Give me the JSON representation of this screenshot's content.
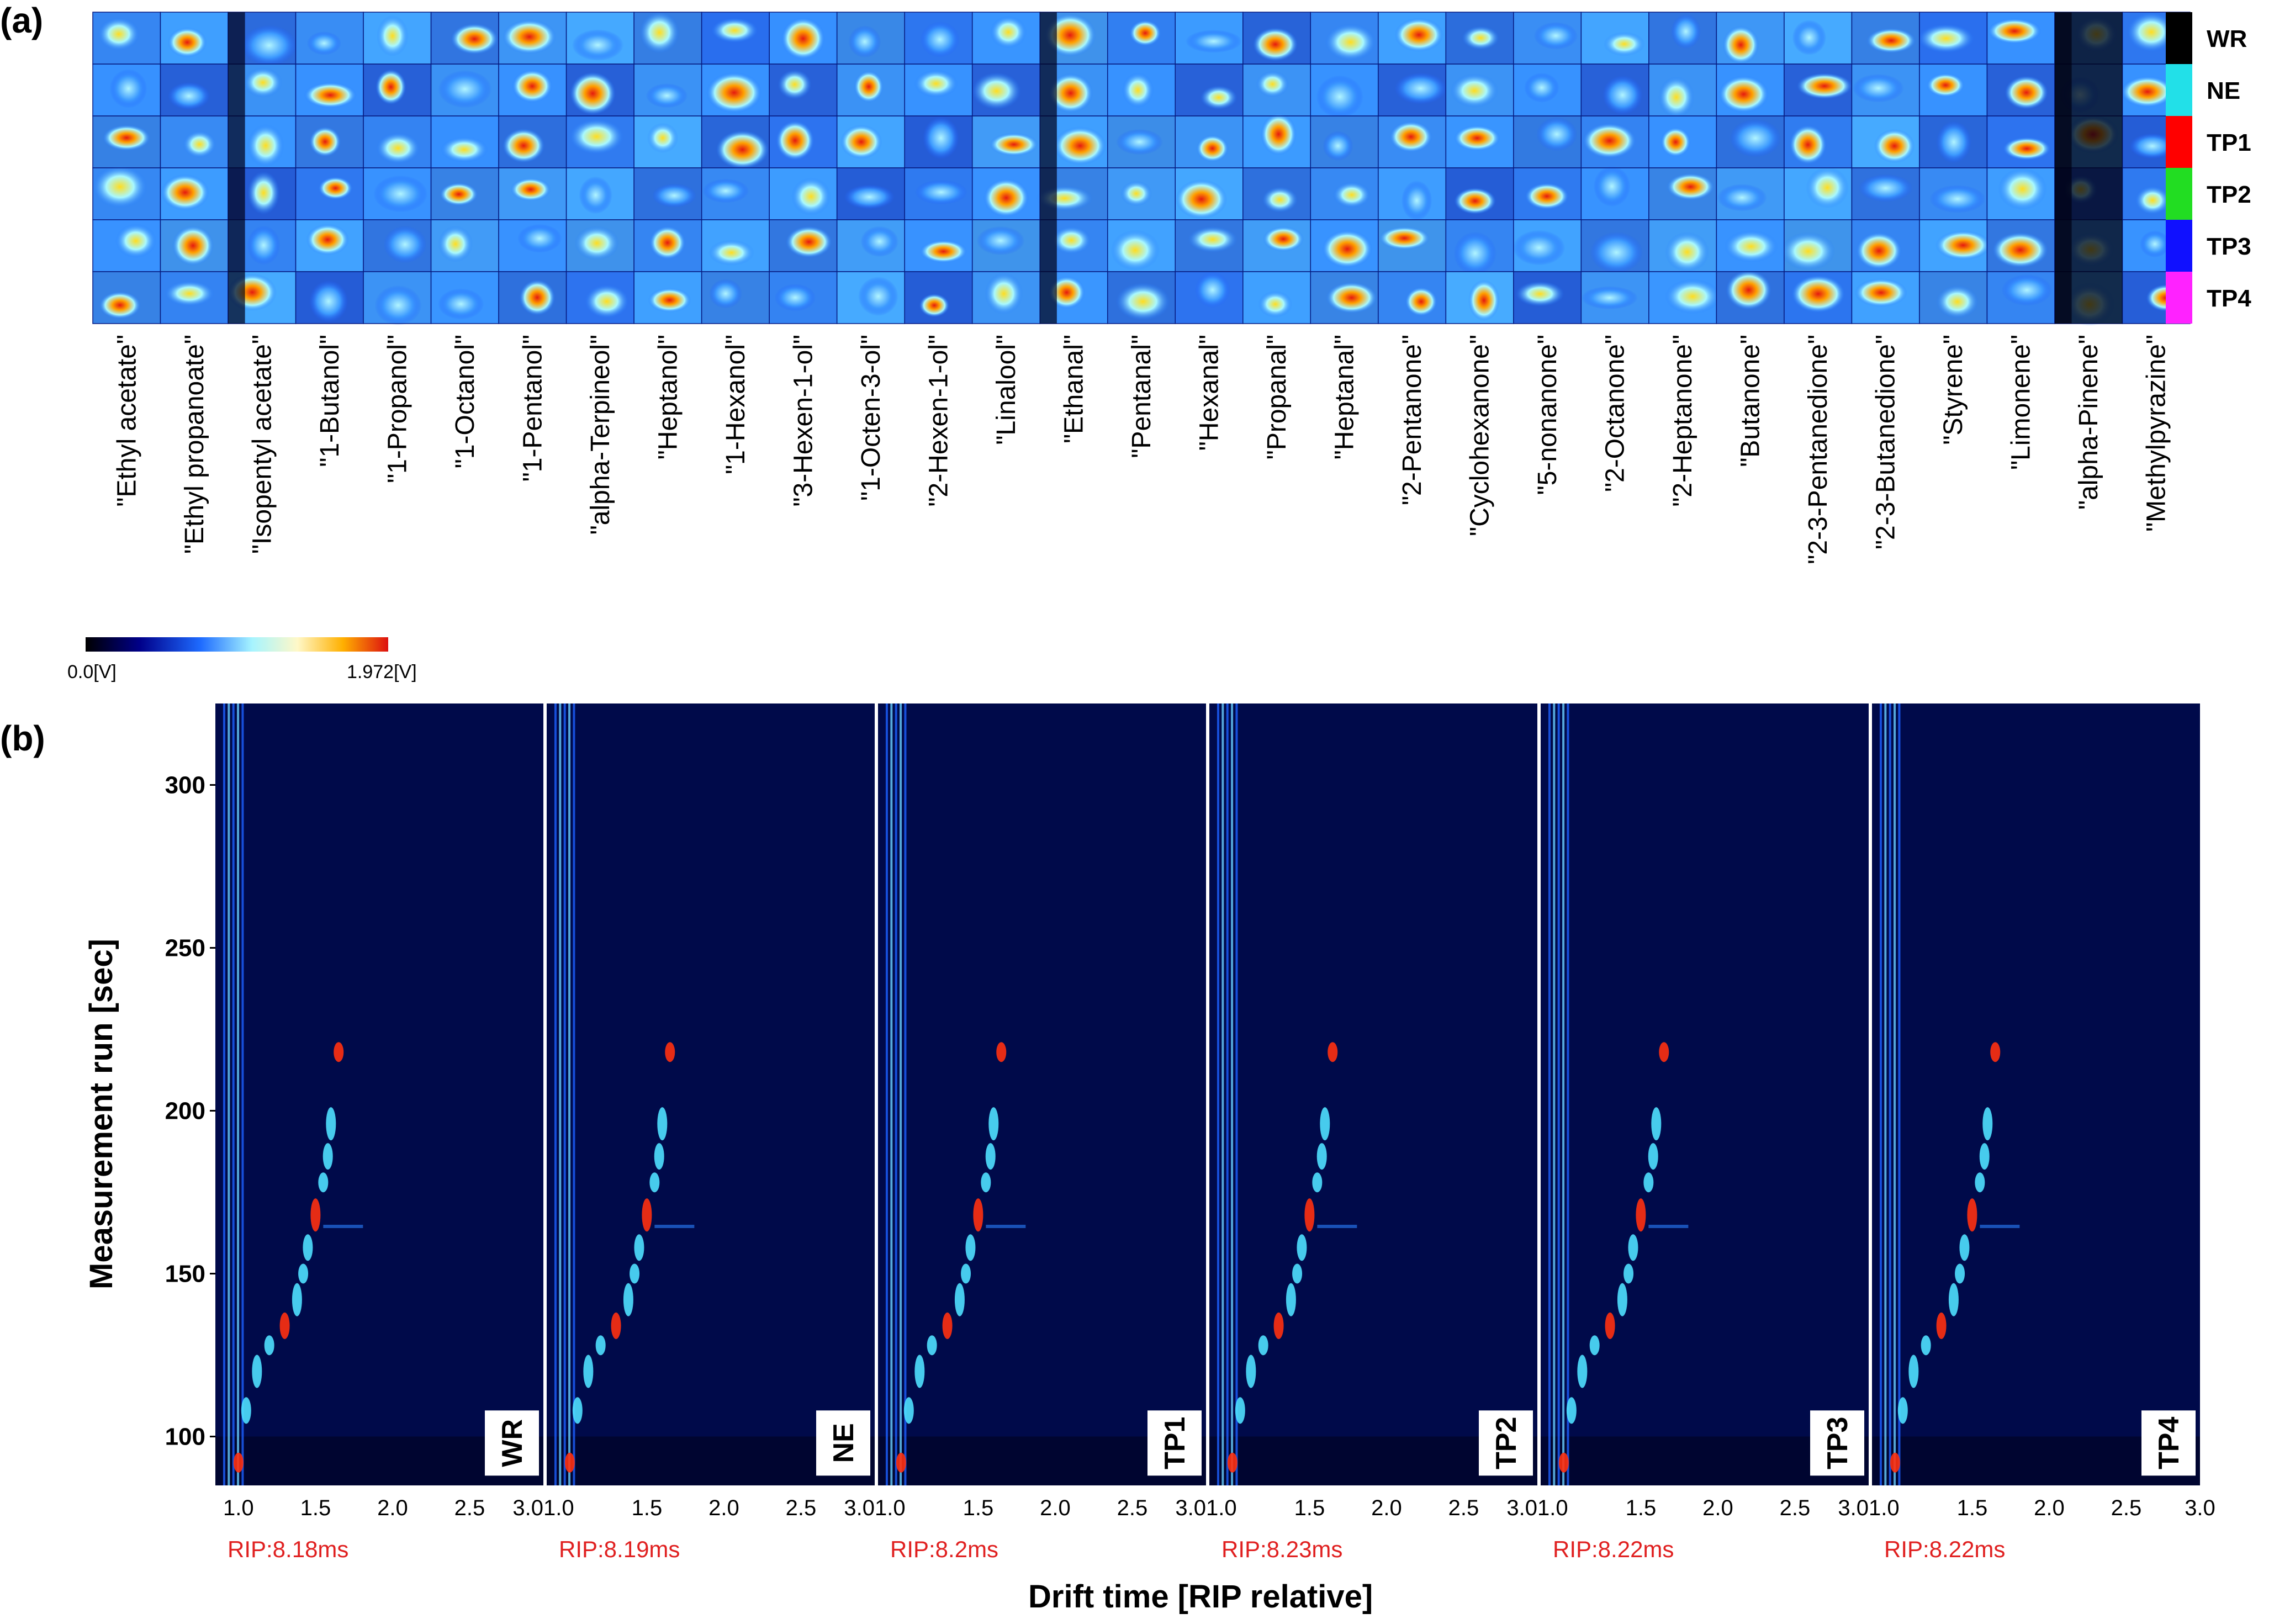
{
  "panel_a": {
    "label": "(a)",
    "compounds": [
      "\"Ethyl acetate\"",
      "\"Ethyl propanoate\"",
      "\"Isopentyl acetate\"",
      "\"1-Butanol\"",
      "\"1-Propanol\"",
      "\"1-Octanol\"",
      "\"1-Pentanol\"",
      "\"alpha-Terpineol\"",
      "\"Heptanol\"",
      "\"1-Hexanol\"",
      "\"3-Hexen-1-ol\"",
      "\"1-Octen-3-ol\"",
      "\"2-Hexen-1-ol\"",
      "\"Linalool\"",
      "\"Ethanal\"",
      "\"Pentanal\"",
      "\"Hexanal\"",
      "\"Propanal\"",
      "\"Heptanal\"",
      "\"2-Pentanone\"",
      "\"Cyclohexanone\"",
      "\"5-nonanone\"",
      "\"2-Octanone\"",
      "\"2-Heptanone\"",
      "\"Butanone\"",
      "\"2-3-Pentanedione\"",
      "\"2-3-Butanedione\"",
      "\"Styrene\"",
      "\"Limonene\"",
      "\"alpha-Pinene\"",
      "\"Methylpyrazine\""
    ],
    "groups": [
      {
        "name": "WR",
        "color": "#000000"
      },
      {
        "name": "NE",
        "color": "#22e0e8"
      },
      {
        "name": "TP1",
        "color": "#ff0000"
      },
      {
        "name": "TP2",
        "color": "#22dd22"
      },
      {
        "name": "TP3",
        "color": "#1010ff"
      },
      {
        "name": "TP4",
        "color": "#ff22ff"
      }
    ],
    "colorbar": {
      "min_label": "0.0[V]",
      "max_label": "1.972[V]"
    }
  },
  "panel_b": {
    "label": "(b)",
    "ylabel": "Measurement run [sec]",
    "xlabel": "Drift time [RIP relative]",
    "yticks": [
      "100",
      "150",
      "200",
      "250",
      "300"
    ],
    "xticks_first": [
      "1.0",
      "1.5",
      "2.0",
      "2.5",
      "3.0"
    ],
    "xticks_rest": [
      "1.5",
      "2.0",
      "2.5",
      "3.0"
    ],
    "xticks_junction": [
      "3.01.0",
      "3.01.0",
      "3.01.0",
      "3.01.0",
      "3.01.0"
    ],
    "panels": [
      {
        "name": "WR",
        "rip": "RIP:8.18ms"
      },
      {
        "name": "NE",
        "rip": "RIP:8.19ms"
      },
      {
        "name": "TP1",
        "rip": "RIP:8.2ms"
      },
      {
        "name": "TP2",
        "rip": "RIP:8.23ms"
      },
      {
        "name": "TP3",
        "rip": "RIP:8.22ms"
      },
      {
        "name": "TP4",
        "rip": "RIP:8.22ms"
      }
    ]
  },
  "chart_data": [
    {
      "type": "heatmap",
      "title": "",
      "rows": [
        "WR",
        "NE",
        "TP1",
        "TP2",
        "TP3",
        "TP4"
      ],
      "columns": [
        "Ethyl acetate",
        "Ethyl propanoate",
        "Isopentyl acetate",
        "1-Butanol",
        "1-Propanol",
        "1-Octanol",
        "1-Pentanol",
        "alpha-Terpineol",
        "Heptanol",
        "1-Hexanol",
        "3-Hexen-1-ol",
        "1-Octen-3-ol",
        "2-Hexen-1-ol",
        "Linalool",
        "Ethanal",
        "Pentanal",
        "Hexanal",
        "Propanal",
        "Heptanal",
        "2-Pentanone",
        "Cyclohexanone",
        "5-nonanone",
        "2-Octanone",
        "2-Heptanone",
        "Butanone",
        "2-3-Pentanedione",
        "2-3-Butanedione",
        "Styrene",
        "Limonene",
        "alpha-Pinene",
        "Methylpyrazine"
      ],
      "value_range": [
        0.0,
        1.972
      ],
      "unit": "V"
    },
    {
      "type": "heatmap",
      "series": [
        {
          "name": "WR",
          "rip_ms": 8.18
        },
        {
          "name": "NE",
          "rip_ms": 8.19
        },
        {
          "name": "TP1",
          "rip_ms": 8.2
        },
        {
          "name": "TP2",
          "rip_ms": 8.23
        },
        {
          "name": "TP3",
          "rip_ms": 8.22
        },
        {
          "name": "TP4",
          "rip_ms": 8.22
        }
      ],
      "xlabel": "Drift time [RIP relative]",
      "ylabel": "Measurement run [sec]",
      "xlim": [
        0.85,
        3.0
      ],
      "ylim": [
        85,
        325
      ],
      "xticks": [
        1.0,
        1.5,
        2.0,
        2.5,
        3.0
      ],
      "yticks": [
        100,
        150,
        200,
        250,
        300
      ]
    }
  ]
}
